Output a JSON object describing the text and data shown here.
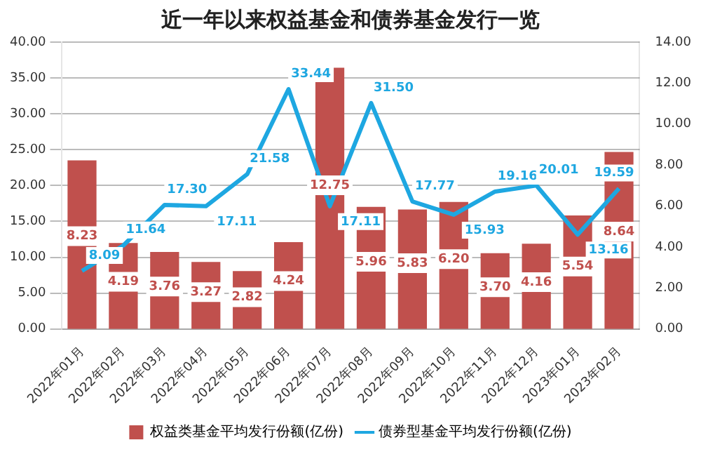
{
  "chart_data": {
    "type": "bar",
    "title": "近一年以来权益基金和债券基金发行一览",
    "categories": [
      "2022年01月",
      "2022年02月",
      "2022年03月",
      "2022年04月",
      "2022年05月",
      "2022年06月",
      "2022年07月",
      "2022年08月",
      "2022年09月",
      "2022年10月",
      "2022年11月",
      "2022年12月",
      "2023年01月",
      "2023年02月"
    ],
    "series": [
      {
        "name": "权益类基金平均发行份额(亿份)",
        "axis": "y2",
        "color": "#c0504d",
        "values": [
          8.23,
          4.19,
          3.76,
          3.27,
          2.82,
          4.24,
          12.75,
          5.96,
          5.83,
          6.2,
          3.7,
          4.16,
          5.54,
          8.64
        ],
        "value_labels": [
          "8.23",
          "4.19",
          "3.76",
          "3.27",
          "2.82",
          "4.24",
          "12.75",
          "5.96",
          "5.83",
          "6.20",
          "3.70",
          "4.16",
          "5.54",
          "8.64"
        ]
      },
      {
        "name": "债券型基金平均发行份额(亿份)",
        "type": "line",
        "axis": "y",
        "color": "#1ea7e1",
        "values": [
          8.09,
          11.64,
          17.3,
          17.11,
          21.58,
          33.44,
          17.11,
          31.5,
          17.77,
          15.93,
          19.16,
          20.01,
          13.16,
          19.59
        ],
        "value_labels": [
          "8.09",
          "11.64",
          "17.30",
          "17.11",
          "21.58",
          "33.44",
          "17.11",
          "31.50",
          "17.77",
          "15.93",
          "19.16",
          "20.01",
          "13.16",
          "19.59"
        ]
      }
    ],
    "ylim": [
      0,
      40
    ],
    "yticks": [
      {
        "value": 0,
        "label": "0.00"
      },
      {
        "value": 5,
        "label": "5.00"
      },
      {
        "value": 10,
        "label": "10.00"
      },
      {
        "value": 15,
        "label": "15.00"
      },
      {
        "value": 20,
        "label": "20.00"
      },
      {
        "value": 25,
        "label": "25.00"
      },
      {
        "value": 30,
        "label": "30.00"
      },
      {
        "value": 35,
        "label": "35.00"
      },
      {
        "value": 40,
        "label": "40.00"
      }
    ],
    "y2lim": [
      0,
      14
    ],
    "y2ticks": [
      {
        "value": 0,
        "label": "0.00"
      },
      {
        "value": 2,
        "label": "2.00"
      },
      {
        "value": 4,
        "label": "4.00"
      },
      {
        "value": 6,
        "label": "6.00"
      },
      {
        "value": 8,
        "label": "8.00"
      },
      {
        "value": 10,
        "label": "10.00"
      },
      {
        "value": 12,
        "label": "12.00"
      },
      {
        "value": 14,
        "label": "14.00"
      }
    ],
    "grid": "y",
    "legend": "bottom",
    "marker": "none",
    "line_style": "solid"
  }
}
